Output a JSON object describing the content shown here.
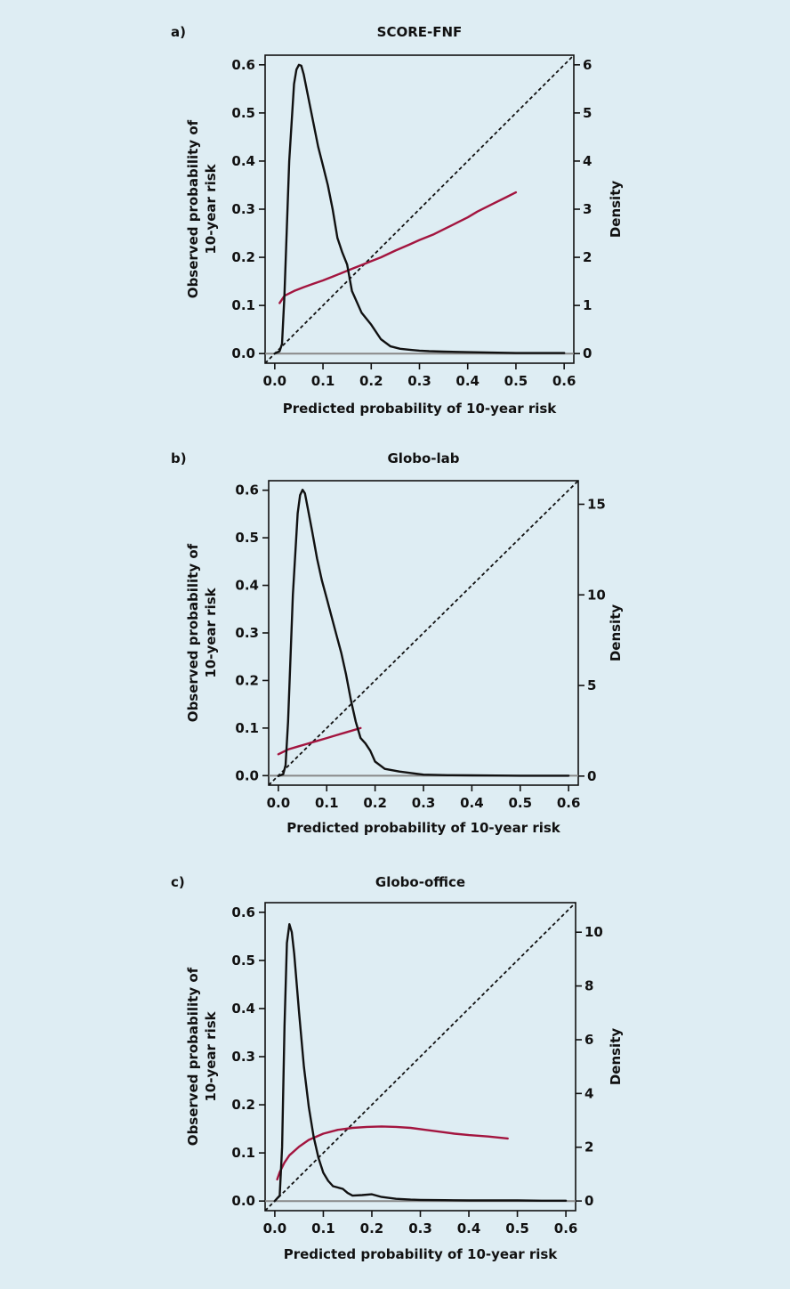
{
  "chart_data": [
    {
      "type": "line",
      "panel_label": "a)",
      "title": "SCORE-FNF",
      "xlabel": "Predicted probability of 10-year risk",
      "ylabel": [
        "Observed probability of",
        "10-year risk"
      ],
      "y2label": "Density",
      "xlim": [
        -0.02,
        0.62
      ],
      "ylim": [
        -0.02,
        0.62
      ],
      "y2lim": [
        -0.2,
        6.2
      ],
      "x_ticks": [
        "0.0",
        "0.1",
        "0.2",
        "0.3",
        "0.4",
        "0.5",
        "0.6"
      ],
      "y_ticks": [
        "0.0",
        "0.1",
        "0.2",
        "0.3",
        "0.4",
        "0.5",
        "0.6"
      ],
      "y2_ticks": [
        "0",
        "1",
        "2",
        "3",
        "4",
        "5",
        "6"
      ],
      "grid": false,
      "reference_line": {
        "style": "dashed",
        "from": [
          -0.02,
          -0.02
        ],
        "to": [
          0.62,
          0.62
        ]
      },
      "zero_line": {
        "color": "#888888",
        "y": 0
      },
      "series": [
        {
          "color": "#a3153f",
          "axis": "left",
          "x": [
            0.01,
            0.02,
            0.04,
            0.06,
            0.08,
            0.1,
            0.12,
            0.14,
            0.16,
            0.18,
            0.2,
            0.22,
            0.25,
            0.28,
            0.3,
            0.33,
            0.35,
            0.38,
            0.4,
            0.42,
            0.45,
            0.48,
            0.5
          ],
          "y": [
            0.105,
            0.12,
            0.13,
            0.138,
            0.145,
            0.152,
            0.16,
            0.168,
            0.176,
            0.184,
            0.192,
            0.2,
            0.214,
            0.227,
            0.236,
            0.248,
            0.258,
            0.273,
            0.283,
            0.295,
            0.31,
            0.325,
            0.335
          ]
        },
        {
          "color": "#111111",
          "axis": "right",
          "x": [
            0.0,
            0.01,
            0.015,
            0.02,
            0.03,
            0.04,
            0.045,
            0.05,
            0.055,
            0.06,
            0.07,
            0.08,
            0.09,
            0.1,
            0.11,
            0.12,
            0.13,
            0.14,
            0.15,
            0.16,
            0.18,
            0.2,
            0.22,
            0.24,
            0.26,
            0.28,
            0.3,
            0.32,
            0.35,
            0.4,
            0.45,
            0.5,
            0.55,
            0.6
          ],
          "y": [
            0.0,
            0.05,
            0.2,
            1.2,
            4.0,
            5.6,
            5.9,
            6.0,
            5.98,
            5.8,
            5.3,
            4.8,
            4.3,
            3.9,
            3.5,
            3.0,
            2.4,
            2.1,
            1.85,
            1.3,
            0.85,
            0.6,
            0.3,
            0.15,
            0.1,
            0.08,
            0.06,
            0.05,
            0.04,
            0.03,
            0.02,
            0.01,
            0.01,
            0.01
          ]
        }
      ]
    },
    {
      "type": "line",
      "panel_label": "b)",
      "title": "Globo-lab",
      "xlabel": "Predicted probability of 10-year risk",
      "ylabel": [
        "Observed probability of",
        "10-year risk"
      ],
      "y2label": "Density",
      "xlim": [
        -0.02,
        0.62
      ],
      "ylim": [
        -0.02,
        0.62
      ],
      "y2lim": [
        -0.5,
        16.3
      ],
      "x_ticks": [
        "0.0",
        "0.1",
        "0.2",
        "0.3",
        "0.4",
        "0.5",
        "0.6"
      ],
      "y_ticks": [
        "0.0",
        "0.1",
        "0.2",
        "0.3",
        "0.4",
        "0.5",
        "0.6"
      ],
      "y2_ticks": [
        "0",
        "5",
        "10",
        "15"
      ],
      "grid": false,
      "reference_line": {
        "style": "dashed",
        "from": [
          -0.02,
          -0.02
        ],
        "to": [
          0.62,
          0.62
        ]
      },
      "zero_line": {
        "color": "#888888",
        "y": 0
      },
      "series": [
        {
          "color": "#a3153f",
          "axis": "left",
          "x": [
            0.0,
            0.02,
            0.04,
            0.06,
            0.08,
            0.1,
            0.12,
            0.14,
            0.17
          ],
          "y": [
            0.045,
            0.055,
            0.061,
            0.067,
            0.073,
            0.079,
            0.085,
            0.091,
            0.1
          ]
        },
        {
          "color": "#111111",
          "axis": "right",
          "x": [
            0.0,
            0.01,
            0.015,
            0.02,
            0.03,
            0.04,
            0.045,
            0.05,
            0.055,
            0.06,
            0.07,
            0.08,
            0.09,
            0.1,
            0.11,
            0.12,
            0.13,
            0.14,
            0.15,
            0.16,
            0.17,
            0.18,
            0.19,
            0.2,
            0.22,
            0.25,
            0.28,
            0.3,
            0.35,
            0.4,
            0.45,
            0.5,
            0.55,
            0.6
          ],
          "y": [
            0.0,
            0.1,
            0.6,
            3.0,
            10.0,
            14.5,
            15.5,
            15.8,
            15.6,
            14.9,
            13.5,
            12.0,
            10.8,
            9.8,
            8.8,
            7.8,
            6.8,
            5.6,
            4.2,
            3.0,
            2.1,
            1.8,
            1.4,
            0.8,
            0.4,
            0.25,
            0.15,
            0.08,
            0.05,
            0.04,
            0.03,
            0.02,
            0.02,
            0.02
          ]
        }
      ]
    },
    {
      "type": "line",
      "panel_label": "c)",
      "title": "Globo-office",
      "xlabel": "Predicted probability of 10-year risk",
      "ylabel": [
        "Observed probability of",
        "10-year risk"
      ],
      "y2label": "Density",
      "xlim": [
        -0.02,
        0.62
      ],
      "ylim": [
        -0.02,
        0.62
      ],
      "y2lim": [
        -0.36,
        11.1
      ],
      "x_ticks": [
        "0.0",
        "0.1",
        "0.2",
        "0.3",
        "0.4",
        "0.5",
        "0.6"
      ],
      "y_ticks": [
        "0.0",
        "0.1",
        "0.2",
        "0.3",
        "0.4",
        "0.5",
        "0.6"
      ],
      "y2_ticks": [
        "0",
        "2",
        "4",
        "6",
        "8",
        "10"
      ],
      "grid": false,
      "reference_line": {
        "style": "dashed",
        "from": [
          -0.02,
          -0.02
        ],
        "to": [
          0.62,
          0.62
        ]
      },
      "zero_line": {
        "color": "#888888",
        "y": 0
      },
      "series": [
        {
          "color": "#a3153f",
          "axis": "left",
          "x": [
            0.005,
            0.01,
            0.02,
            0.03,
            0.05,
            0.07,
            0.1,
            0.13,
            0.16,
            0.19,
            0.22,
            0.25,
            0.28,
            0.31,
            0.34,
            0.37,
            0.4,
            0.44,
            0.48
          ],
          "y": [
            0.045,
            0.06,
            0.08,
            0.095,
            0.113,
            0.127,
            0.14,
            0.148,
            0.152,
            0.154,
            0.155,
            0.154,
            0.152,
            0.148,
            0.144,
            0.14,
            0.137,
            0.134,
            0.13
          ]
        },
        {
          "color": "#111111",
          "axis": "right",
          "x": [
            0.0,
            0.01,
            0.015,
            0.02,
            0.025,
            0.03,
            0.035,
            0.04,
            0.05,
            0.06,
            0.07,
            0.08,
            0.09,
            0.1,
            0.11,
            0.12,
            0.13,
            0.14,
            0.15,
            0.16,
            0.18,
            0.2,
            0.22,
            0.25,
            0.28,
            0.3,
            0.35,
            0.4,
            0.45,
            0.5,
            0.55,
            0.6
          ],
          "y": [
            0.0,
            0.2,
            2.0,
            6.5,
            9.6,
            10.3,
            10.0,
            9.2,
            7.0,
            5.0,
            3.5,
            2.4,
            1.6,
            1.05,
            0.75,
            0.55,
            0.5,
            0.45,
            0.3,
            0.2,
            0.22,
            0.25,
            0.15,
            0.08,
            0.05,
            0.04,
            0.03,
            0.02,
            0.02,
            0.02,
            0.01,
            0.01
          ]
        }
      ]
    }
  ]
}
